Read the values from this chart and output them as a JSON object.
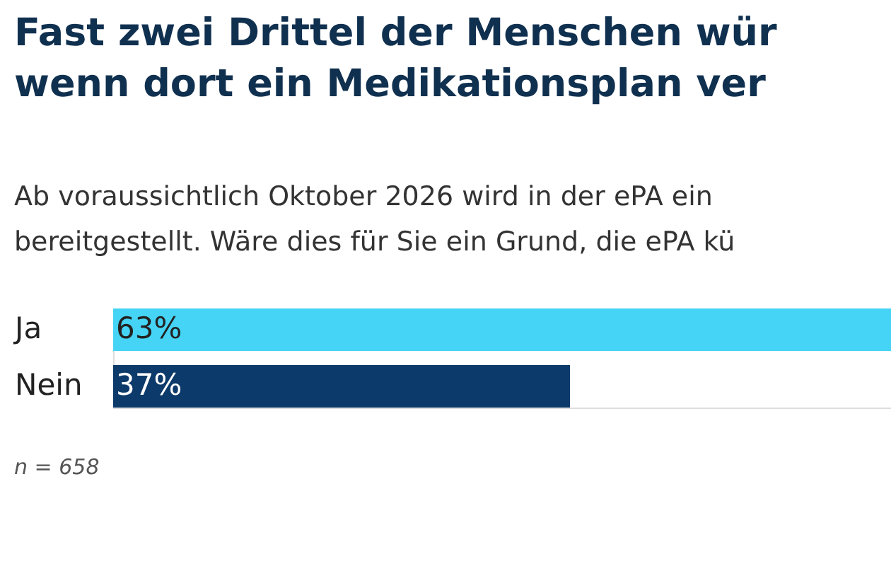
{
  "chart_data": {
    "type": "bar",
    "orientation": "horizontal",
    "title": [
      "Fast zwei Drittel der Menschen wür",
      "wenn dort ein Medikationsplan ver"
    ],
    "subtitle": [
      "Ab voraussichtlich Oktober 2026 wird in der ePA ein",
      "bereitgestellt. Wäre dies für Sie ein Grund, die ePA kü"
    ],
    "categories": [
      "Ja",
      "Nein"
    ],
    "values": [
      63,
      37
    ],
    "colors": [
      "#45d4f5",
      "#0c3a6a"
    ],
    "value_labels": [
      "63%",
      "37%"
    ],
    "annotations": [
      "n = 658"
    ]
  }
}
